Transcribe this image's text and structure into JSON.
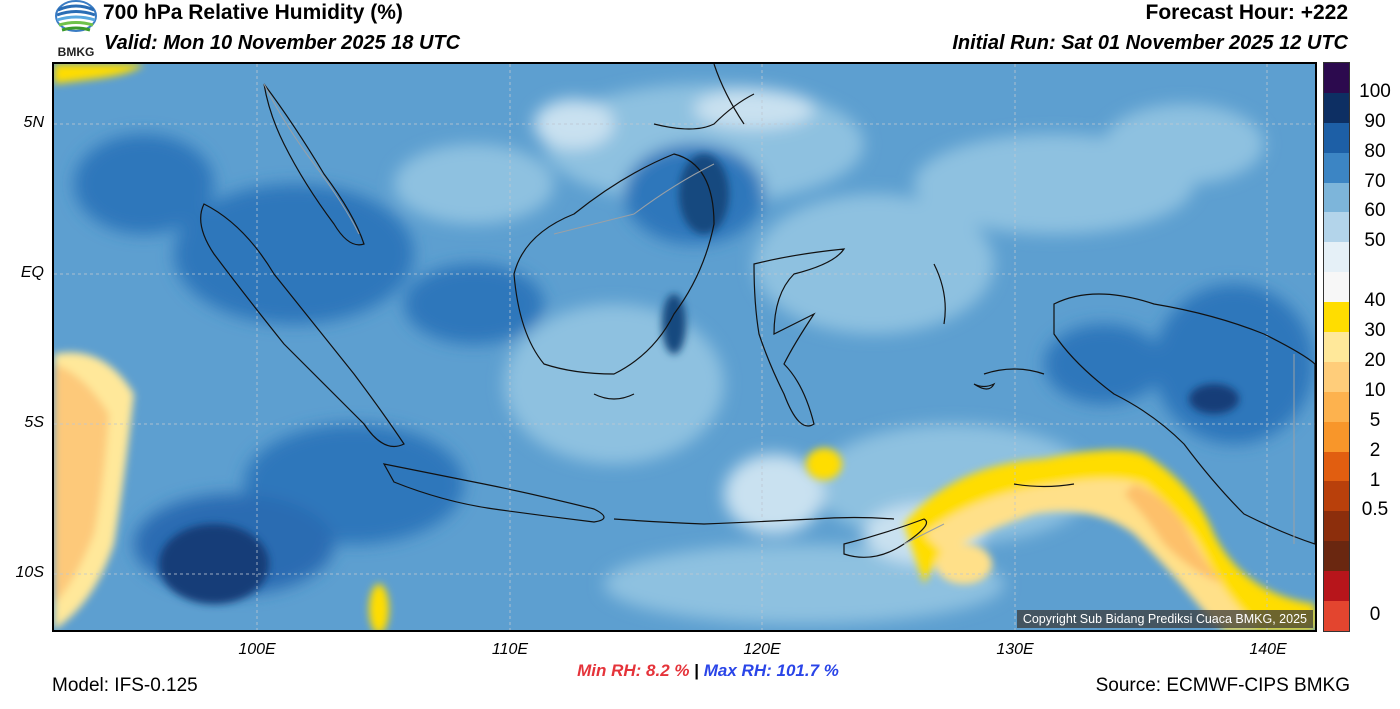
{
  "header": {
    "title": "700 hPa Relative Humidity (%)",
    "valid": "Valid: Mon 10 November 2025 18 UTC",
    "forecast_hour": "Forecast Hour: +222",
    "initial_run": "Initial Run: Sat 01 November 2025 12 UTC",
    "logo_text": "BMKG"
  },
  "axes": {
    "lat_labels": [
      "5N",
      "EQ",
      "5S",
      "10S"
    ],
    "lon_labels": [
      "100E",
      "110E",
      "120E",
      "130E",
      "140E"
    ]
  },
  "colorbar": {
    "labels": [
      "100",
      "90",
      "80",
      "70",
      "60",
      "50",
      "40",
      "30",
      "20",
      "10",
      "5",
      "2",
      "1",
      "0.5",
      "0"
    ],
    "colors": [
      "#2c0a4e",
      "#0d2f63",
      "#1d5fa6",
      "#3c85c4",
      "#7db5da",
      "#b3d4ea",
      "#e5f0f7",
      "#f7f7f7",
      "#ffdd00",
      "#ffe89a",
      "#ffcd7a",
      "#fdb24e",
      "#f8962a",
      "#e15e10",
      "#b9400b",
      "#8c2e0c",
      "#6a2710",
      "#b7151b",
      "#e3452f"
    ]
  },
  "stats": {
    "min_label": "Min RH:",
    "min_value": "8.2 %",
    "separator": "|",
    "max_label": "Max RH:",
    "max_value": "101.7 %"
  },
  "footer": {
    "model": "Model: IFS-0.125",
    "source": "Source: ECMWF-CIPS BMKG",
    "copyright": "Copyright Sub Bidang Prediksi Cuaca BMKG, 2025"
  }
}
